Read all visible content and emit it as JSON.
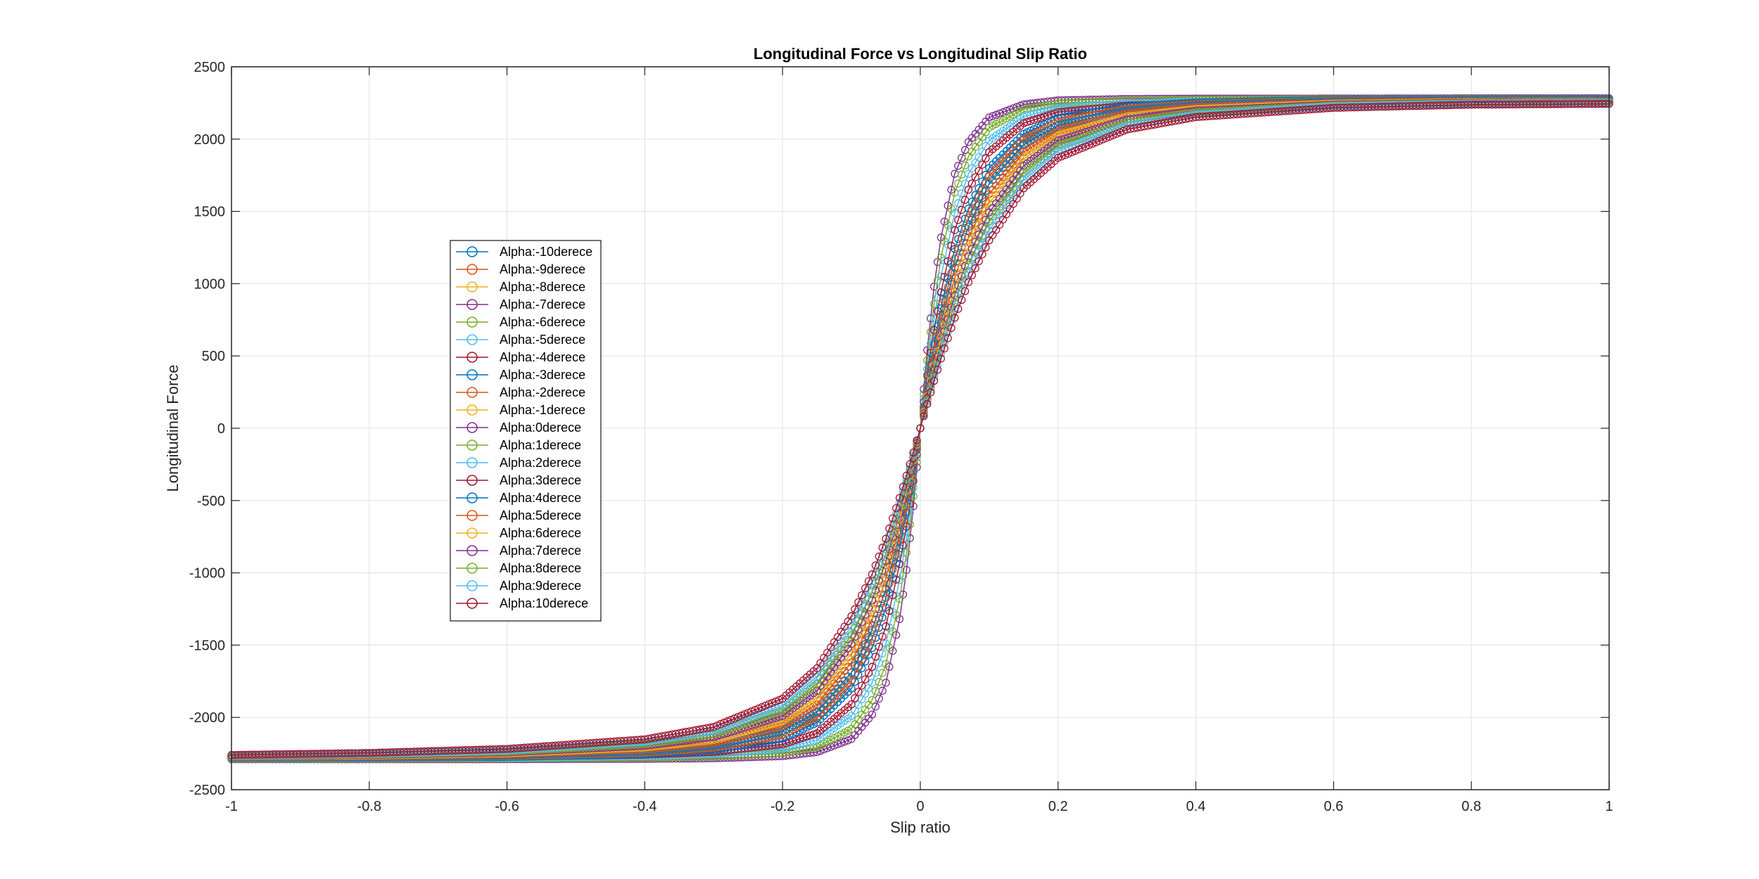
{
  "chart_data": {
    "type": "line",
    "title": "Longitudinal Force vs Longitudinal Slip Ratio",
    "xlabel": "Slip ratio",
    "ylabel": "Longitudinal Force",
    "xlim": [
      -1,
      1
    ],
    "ylim": [
      -2500,
      2500
    ],
    "xticks": [
      "-1",
      "-0.8",
      "-0.6",
      "-0.4",
      "-0.2",
      "0",
      "0.2",
      "0.4",
      "0.6",
      "0.8",
      "1"
    ],
    "yticks": [
      "-2500",
      "-2000",
      "-1500",
      "-1000",
      "-500",
      "0",
      "500",
      "1000",
      "1500",
      "2000",
      "2500"
    ],
    "grid": true,
    "legend_position": "left",
    "marker": "circle",
    "x_points": [
      -1,
      -0.8,
      -0.6,
      -0.4,
      -0.3,
      -0.2,
      -0.15,
      -0.1,
      -0.07,
      -0.05,
      -0.03,
      -0.02,
      -0.01,
      0,
      0.01,
      0.02,
      0.03,
      0.05,
      0.07,
      0.1,
      0.15,
      0.2,
      0.3,
      0.4,
      0.6,
      0.8,
      1
    ],
    "series": [
      {
        "name": "Alpha:-10derece",
        "color": "#0072BD",
        "values": [
          -2282,
          -2280,
          -2274,
          -2254,
          -2224,
          -2146,
          -2036,
          -1800,
          -1520,
          -1240,
          -830,
          -580,
          -300,
          0,
          300,
          580,
          830,
          1240,
          1520,
          1800,
          2036,
          2146,
          2224,
          2254,
          2272,
          2276,
          2278
        ]
      },
      {
        "name": "Alpha:-9derece",
        "color": "#D95319",
        "values": [
          -2279,
          -2276,
          -2268,
          -2244,
          -2210,
          -2120,
          -1998,
          -1744,
          -1456,
          -1174,
          -778,
          -540,
          -280,
          0,
          280,
          540,
          778,
          1174,
          1456,
          1744,
          1998,
          2120,
          2210,
          2244,
          2266,
          2272,
          2274
        ]
      },
      {
        "name": "Alpha:-8derece",
        "color": "#EDB120",
        "values": [
          -2276,
          -2272,
          -2262,
          -2234,
          -2196,
          -2094,
          -1960,
          -1690,
          -1394,
          -1110,
          -730,
          -505,
          -260,
          0,
          260,
          505,
          730,
          1110,
          1394,
          1690,
          1960,
          2094,
          2196,
          2234,
          2260,
          2268,
          2270
        ]
      },
      {
        "name": "Alpha:-7derece",
        "color": "#7E2F8E",
        "values": [
          -2290,
          -2290,
          -2289,
          -2287,
          -2283,
          -2268,
          -2240,
          -2150,
          -1980,
          -1760,
          -1320,
          -980,
          -540,
          0,
          540,
          980,
          1320,
          1760,
          1980,
          2150,
          2240,
          2268,
          2278,
          2280,
          2281,
          2282,
          2282
        ]
      },
      {
        "name": "Alpha:-6derece",
        "color": "#77AC30",
        "values": [
          -2287,
          -2286,
          -2284,
          -2278,
          -2270,
          -2248,
          -2206,
          -2080,
          -1880,
          -1630,
          -1180,
          -860,
          -470,
          0,
          470,
          860,
          1180,
          1630,
          1880,
          2080,
          2206,
          2248,
          2266,
          2272,
          2276,
          2278,
          2278
        ]
      },
      {
        "name": "Alpha:-5derece",
        "color": "#4DBEEE",
        "values": [
          -2284,
          -2282,
          -2278,
          -2268,
          -2254,
          -2216,
          -2156,
          -1990,
          -1760,
          -1490,
          -1050,
          -760,
          -410,
          0,
          410,
          760,
          1050,
          1490,
          1760,
          1990,
          2156,
          2216,
          2246,
          2258,
          2266,
          2270,
          2272
        ]
      },
      {
        "name": "Alpha:-4derece",
        "color": "#A2142F",
        "values": [
          -2281,
          -2278,
          -2272,
          -2258,
          -2238,
          -2186,
          -2110,
          -1910,
          -1650,
          -1370,
          -940,
          -680,
          -365,
          0,
          365,
          680,
          940,
          1370,
          1650,
          1910,
          2110,
          2186,
          2230,
          2246,
          2258,
          2264,
          2266
        ]
      },
      {
        "name": "Alpha:-3derece",
        "color": "#0072BD",
        "values": [
          -2282,
          -2280,
          -2274,
          -2254,
          -2224,
          -2146,
          -2036,
          -1800,
          -1520,
          -1240,
          -830,
          -580,
          -300,
          0,
          300,
          580,
          830,
          1240,
          1520,
          1800,
          2036,
          2146,
          2224,
          2254,
          2272,
          2276,
          2278
        ]
      },
      {
        "name": "Alpha:-2derece",
        "color": "#D95319",
        "values": [
          -2279,
          -2276,
          -2268,
          -2244,
          -2210,
          -2120,
          -1998,
          -1744,
          -1456,
          -1174,
          -778,
          -540,
          -280,
          0,
          280,
          540,
          778,
          1174,
          1456,
          1744,
          1998,
          2120,
          2210,
          2244,
          2266,
          2272,
          2274
        ]
      },
      {
        "name": "Alpha:-1derece",
        "color": "#EDB120",
        "values": [
          -2276,
          -2272,
          -2262,
          -2234,
          -2196,
          -2094,
          -1960,
          -1690,
          -1394,
          -1110,
          -730,
          -505,
          -260,
          0,
          260,
          505,
          730,
          1110,
          1394,
          1690,
          1960,
          2094,
          2196,
          2234,
          2260,
          2268,
          2270
        ]
      },
      {
        "name": "Alpha:0derece",
        "color": "#7E2F8E",
        "values": [
          -2272,
          -2268,
          -2254,
          -2220,
          -2176,
          -2060,
          -1910,
          -1620,
          -1320,
          -1040,
          -675,
          -465,
          -240,
          0,
          240,
          465,
          675,
          1040,
          1320,
          1620,
          1910,
          2060,
          2176,
          2220,
          2250,
          2260,
          2262
        ]
      },
      {
        "name": "Alpha:1derece",
        "color": "#77AC30",
        "values": [
          -2270,
          -2264,
          -2248,
          -2208,
          -2156,
          -2026,
          -1862,
          -1556,
          -1254,
          -978,
          -630,
          -432,
          -222,
          0,
          222,
          432,
          630,
          978,
          1254,
          1556,
          1862,
          2026,
          2156,
          2208,
          2244,
          2256,
          2258
        ]
      },
      {
        "name": "Alpha:2derece",
        "color": "#4DBEEE",
        "values": [
          -2268,
          -2260,
          -2242,
          -2196,
          -2136,
          -1990,
          -1814,
          -1492,
          -1190,
          -920,
          -588,
          -402,
          -206,
          0,
          206,
          402,
          588,
          920,
          1190,
          1492,
          1814,
          1990,
          2136,
          2196,
          2238,
          2252,
          2256
        ]
      },
      {
        "name": "Alpha:3derece",
        "color": "#A2142F",
        "values": [
          -2266,
          -2256,
          -2236,
          -2184,
          -2116,
          -1954,
          -1766,
          -1430,
          -1130,
          -866,
          -550,
          -375,
          -192,
          0,
          192,
          375,
          550,
          866,
          1130,
          1430,
          1766,
          1954,
          2116,
          2184,
          2232,
          2248,
          2254
        ]
      },
      {
        "name": "Alpha:4derece",
        "color": "#0072BD",
        "values": [
          -2276,
          -2272,
          -2262,
          -2234,
          -2196,
          -2094,
          -1960,
          -1690,
          -1394,
          -1110,
          -730,
          -505,
          -260,
          0,
          260,
          505,
          730,
          1110,
          1394,
          1690,
          1960,
          2094,
          2196,
          2234,
          2260,
          2268,
          2270
        ]
      },
      {
        "name": "Alpha:5derece",
        "color": "#D95319",
        "values": [
          -2272,
          -2268,
          -2254,
          -2220,
          -2176,
          -2060,
          -1910,
          -1620,
          -1320,
          -1040,
          -675,
          -465,
          -240,
          0,
          240,
          465,
          675,
          1040,
          1320,
          1620,
          1910,
          2060,
          2176,
          2220,
          2250,
          2260,
          2262
        ]
      },
      {
        "name": "Alpha:6derece",
        "color": "#EDB120",
        "values": [
          -2270,
          -2264,
          -2248,
          -2208,
          -2156,
          -2026,
          -1862,
          -1556,
          -1254,
          -978,
          -630,
          -432,
          -222,
          0,
          222,
          432,
          630,
          978,
          1254,
          1556,
          1862,
          2026,
          2156,
          2208,
          2244,
          2256,
          2258
        ]
      },
      {
        "name": "Alpha:7derece",
        "color": "#7E2F8E",
        "values": [
          -2268,
          -2260,
          -2242,
          -2196,
          -2136,
          -1990,
          -1814,
          -1492,
          -1190,
          -920,
          -588,
          -402,
          -206,
          0,
          206,
          402,
          588,
          920,
          1190,
          1492,
          1814,
          1990,
          2136,
          2196,
          2238,
          2252,
          2256
        ]
      },
      {
        "name": "Alpha:8derece",
        "color": "#77AC30",
        "values": [
          -2266,
          -2256,
          -2236,
          -2184,
          -2116,
          -1954,
          -1766,
          -1430,
          -1130,
          -866,
          -550,
          -375,
          -192,
          0,
          192,
          375,
          550,
          866,
          1130,
          1430,
          1766,
          1954,
          2116,
          2184,
          2232,
          2248,
          2254
        ]
      },
      {
        "name": "Alpha:9derece",
        "color": "#4DBEEE",
        "values": [
          -2264,
          -2252,
          -2228,
          -2170,
          -2094,
          -1916,
          -1716,
          -1368,
          -1072,
          -816,
          -516,
          -351,
          -180,
          0,
          180,
          351,
          516,
          816,
          1072,
          1368,
          1716,
          1916,
          2094,
          2170,
          2226,
          2244,
          2250
        ]
      },
      {
        "name": "Alpha:10derece",
        "color": "#A2142F",
        "values": [
          -2260,
          -2246,
          -2218,
          -2152,
          -2066,
          -1870,
          -1660,
          -1300,
          -1010,
          -764,
          -482,
          -328,
          -168,
          0,
          168,
          328,
          482,
          764,
          1010,
          1300,
          1660,
          1870,
          2066,
          2152,
          2216,
          2238,
          2244
        ]
      }
    ]
  }
}
